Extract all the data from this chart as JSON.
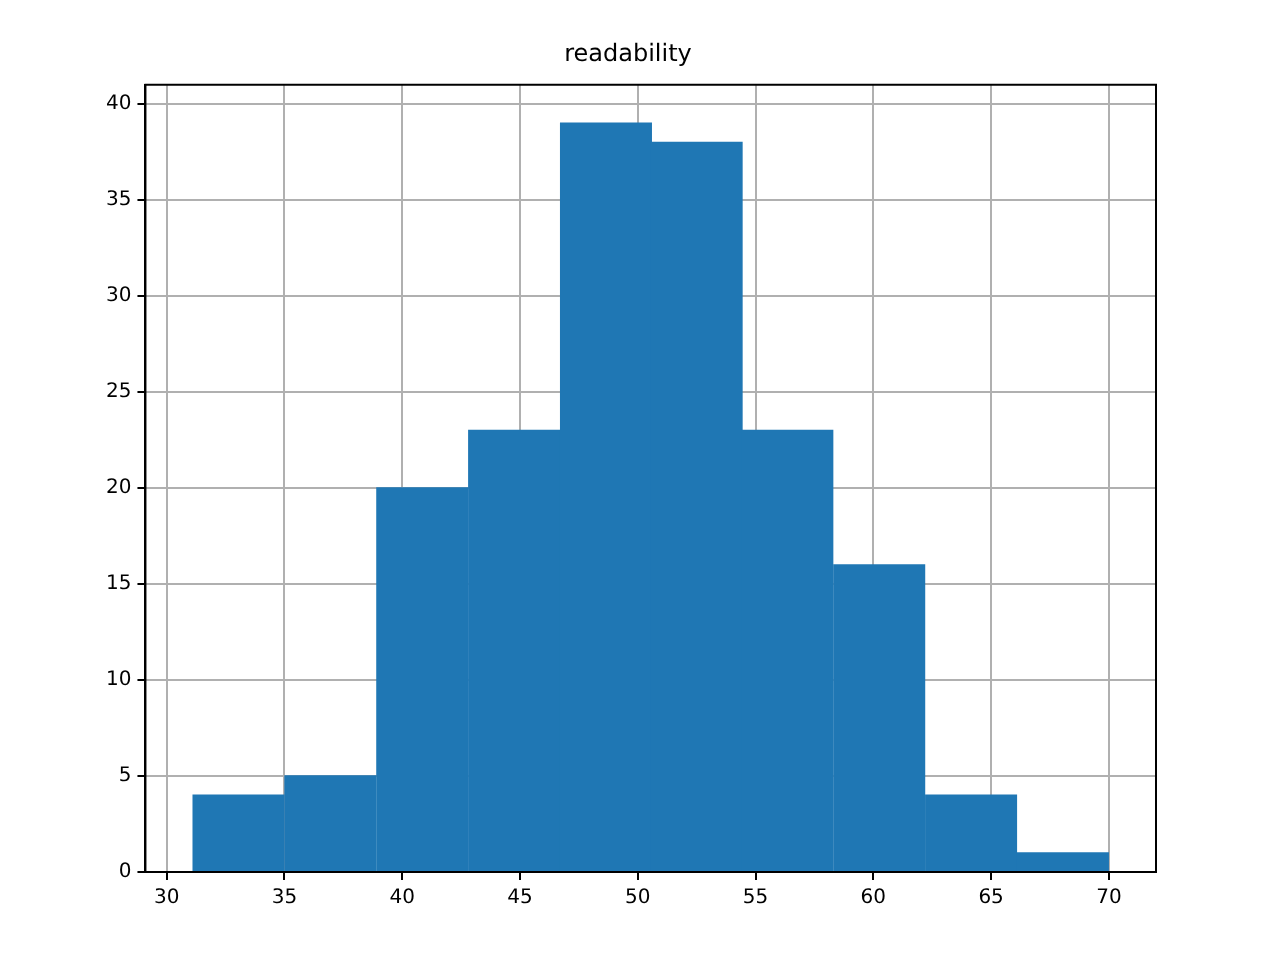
{
  "chart_data": {
    "type": "histogram",
    "title": "readability",
    "bins": [
      31.1,
      35.0,
      38.9,
      42.8,
      46.7,
      50.6,
      54.4,
      58.3,
      62.2,
      66.1,
      70.0
    ],
    "values": [
      4,
      5,
      20,
      23,
      39,
      38,
      23,
      16,
      4,
      1
    ],
    "color": "#1f77b4",
    "xlim": [
      29.1,
      72.0
    ],
    "xticks": [
      30,
      35,
      40,
      45,
      50,
      55,
      60,
      65,
      70
    ],
    "ylim": [
      0,
      41
    ],
    "yticks": [
      0,
      5,
      10,
      15,
      20,
      25,
      30,
      35,
      40
    ],
    "grid": true
  }
}
